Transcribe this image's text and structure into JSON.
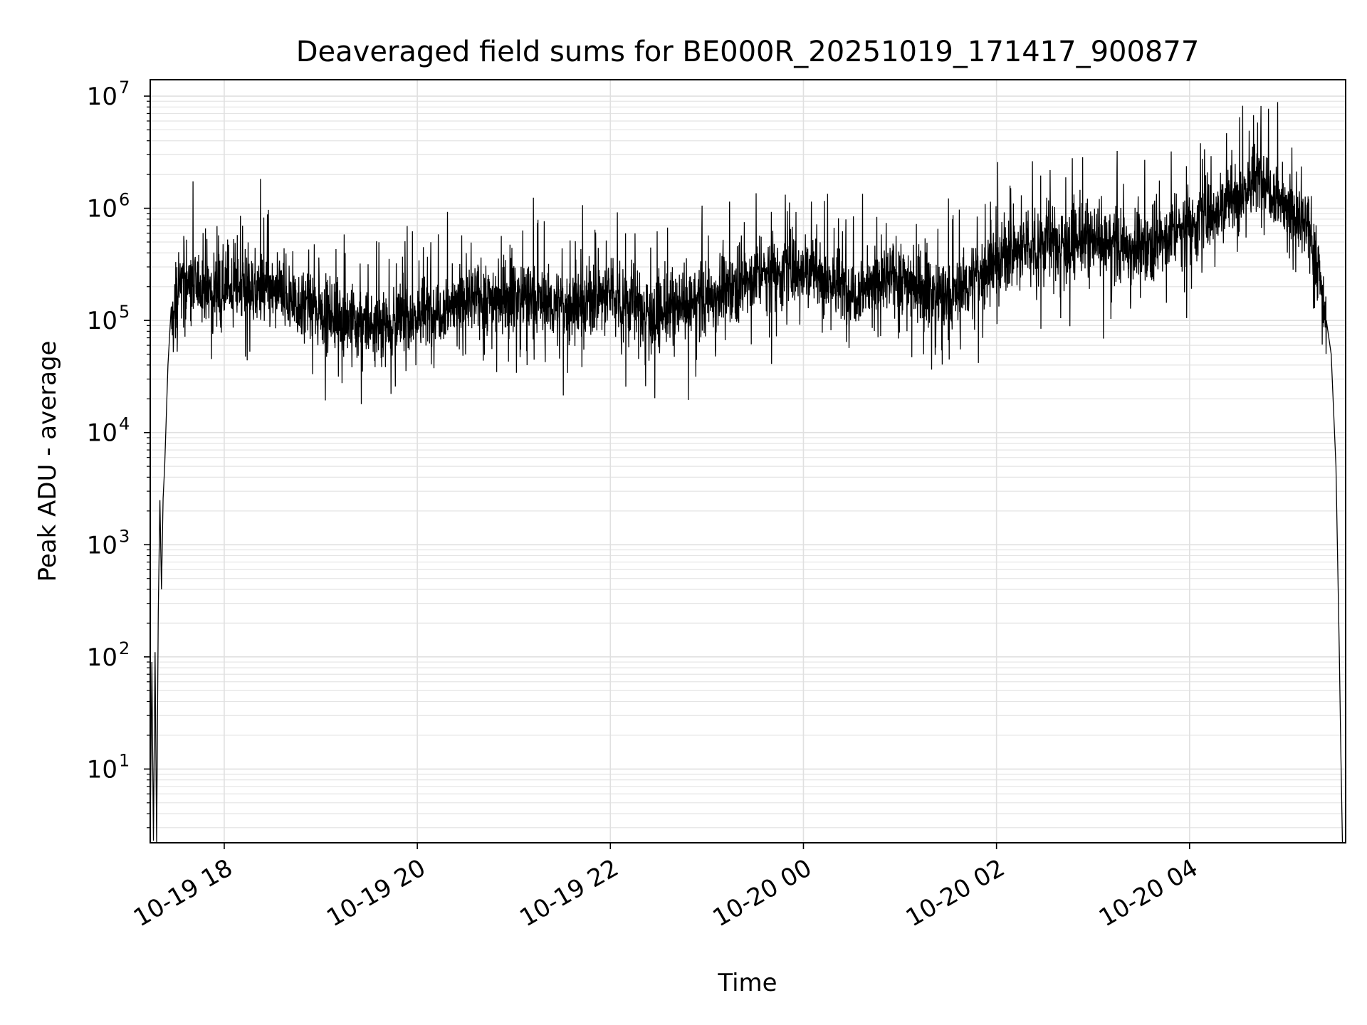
{
  "chart_data": {
    "type": "line",
    "title": "Deaveraged field sums for BE000R_20251019_171417_900877",
    "xlabel": "Time",
    "ylabel": "Peak ADU - average",
    "yscale": "log",
    "ylim": [
      2.2,
      14000000
    ],
    "xlim": [
      "2025-10-19 17:14",
      "2025-10-20 05:37"
    ],
    "grid": true,
    "x_ticks": [
      {
        "t": "2025-10-19 18:00",
        "label": "10-19 18"
      },
      {
        "t": "2025-10-19 20:00",
        "label": "10-19 20"
      },
      {
        "t": "2025-10-19 22:00",
        "label": "10-19 22"
      },
      {
        "t": "2025-10-20 00:00",
        "label": "10-20 00"
      },
      {
        "t": "2025-10-20 02:00",
        "label": "10-20 02"
      },
      {
        "t": "2025-10-20 04:00",
        "label": "10-20 04"
      }
    ],
    "y_ticks": [
      {
        "value": 10,
        "base": "10",
        "exp": "1"
      },
      {
        "value": 100,
        "base": "10",
        "exp": "2"
      },
      {
        "value": 1000,
        "base": "10",
        "exp": "3"
      },
      {
        "value": 10000,
        "base": "10",
        "exp": "4"
      },
      {
        "value": 100000,
        "base": "10",
        "exp": "5"
      },
      {
        "value": 1000000,
        "base": "10",
        "exp": "6"
      },
      {
        "value": 10000000,
        "base": "10",
        "exp": "7"
      }
    ],
    "series": [
      {
        "color": "#000000",
        "points": [
          [
            "2025-10-19 17:14",
            2.5
          ],
          [
            "2025-10-19 17:15",
            90
          ],
          [
            "2025-10-19 17:16",
            2.3
          ],
          [
            "2025-10-19 17:17",
            110
          ],
          [
            "2025-10-19 17:18",
            2.2
          ],
          [
            "2025-10-19 17:19",
            250
          ],
          [
            "2025-10-19 17:20",
            2500
          ],
          [
            "2025-10-19 17:21",
            400
          ],
          [
            "2025-10-19 17:22",
            2600
          ],
          [
            "2025-10-19 17:23",
            5000
          ],
          [
            "2025-10-19 17:25",
            40000
          ],
          [
            "2025-10-19 17:27",
            90000
          ],
          [
            "2025-10-19 17:30",
            150000
          ],
          [
            "2025-10-19 17:35",
            250000
          ],
          [
            "2025-10-19 17:40",
            180000
          ],
          [
            "2025-10-19 17:45",
            220000
          ],
          [
            "2025-10-19 17:50",
            180000
          ],
          [
            "2025-10-19 18:00",
            200000
          ],
          [
            "2025-10-19 18:30",
            180000
          ],
          [
            "2025-10-19 19:00",
            120000
          ],
          [
            "2025-10-19 19:30",
            90000
          ],
          [
            "2025-10-19 20:00",
            110000
          ],
          [
            "2025-10-19 20:30",
            150000
          ],
          [
            "2025-10-19 21:00",
            170000
          ],
          [
            "2025-10-19 21:30",
            130000
          ],
          [
            "2025-10-19 22:00",
            170000
          ],
          [
            "2025-10-19 22:30",
            110000
          ],
          [
            "2025-10-19 23:00",
            160000
          ],
          [
            "2025-10-19 23:30",
            250000
          ],
          [
            "2025-10-20 00:00",
            300000
          ],
          [
            "2025-10-20 00:30",
            180000
          ],
          [
            "2025-10-20 01:00",
            250000
          ],
          [
            "2025-10-20 01:30",
            150000
          ],
          [
            "2025-10-20 02:00",
            350000
          ],
          [
            "2025-10-20 02:30",
            500000
          ],
          [
            "2025-10-20 03:00",
            500000
          ],
          [
            "2025-10-20 03:30",
            450000
          ],
          [
            "2025-10-20 04:00",
            700000
          ],
          [
            "2025-10-20 04:30",
            1300000
          ],
          [
            "2025-10-20 04:45",
            2000000
          ],
          [
            "2025-10-20 05:00",
            1000000
          ],
          [
            "2025-10-20 05:15",
            600000
          ],
          [
            "2025-10-20 05:20",
            300000
          ],
          [
            "2025-10-20 05:25",
            100000
          ],
          [
            "2025-10-20 05:28",
            50000
          ],
          [
            "2025-10-20 05:31",
            5000
          ],
          [
            "2025-10-20 05:33",
            120
          ],
          [
            "2025-10-20 05:34",
            15
          ],
          [
            "2025-10-20 05:35",
            2.2
          ]
        ]
      }
    ]
  }
}
